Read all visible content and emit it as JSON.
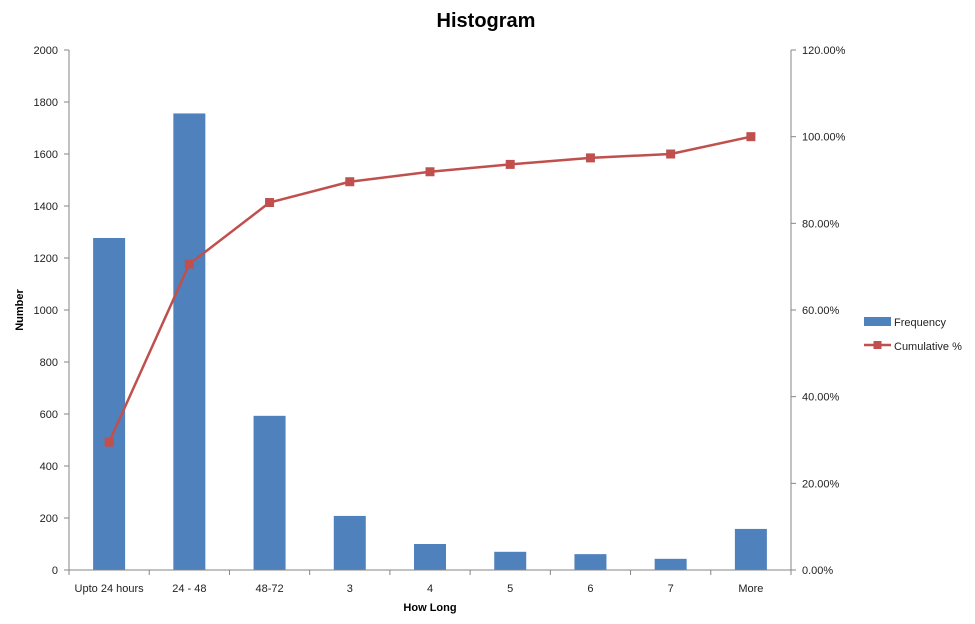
{
  "chart_data": {
    "type": "bar",
    "title": "Histogram",
    "xlabel": "How Long",
    "ylabel": "Number",
    "categories": [
      "Upto 24 hours",
      "24 - 48",
      "48-72",
      "3",
      "4",
      "5",
      "6",
      "7",
      "More"
    ],
    "series": [
      {
        "name": "Frequency",
        "type": "bar",
        "axis": "left",
        "color": "#4F81BD",
        "values": [
          1277,
          1756,
          593,
          208,
          100,
          70,
          61,
          43,
          158
        ]
      },
      {
        "name": "Cumulative %",
        "type": "line",
        "axis": "right",
        "color": "#C0504D",
        "marker": "square",
        "values": [
          29.5,
          70.6,
          84.8,
          89.6,
          91.9,
          93.6,
          95.1,
          96.0,
          100.0
        ]
      }
    ],
    "ylim": [
      0,
      2000
    ],
    "yticks": [
      0,
      200,
      400,
      600,
      800,
      1000,
      1200,
      1400,
      1600,
      1800,
      2000
    ],
    "y2lim": [
      0,
      120
    ],
    "y2ticks": [
      "0.00%",
      "20.00%",
      "40.00%",
      "60.00%",
      "80.00%",
      "100.00%",
      "120.00%"
    ],
    "y2tick_values": [
      0,
      20,
      40,
      60,
      80,
      100,
      120
    ],
    "grid": false,
    "legend_position": "right"
  }
}
